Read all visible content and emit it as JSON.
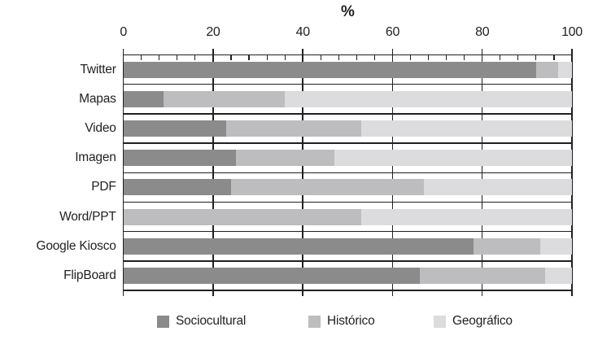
{
  "chart_data": {
    "type": "bar",
    "orientation": "horizontal",
    "stacked": true,
    "title": "",
    "xlabel": "%",
    "xlim": [
      0,
      100
    ],
    "x_ticks": [
      0,
      20,
      40,
      60,
      80,
      100
    ],
    "minor_tick_step": 4,
    "grid": "vertical-major",
    "legend_position": "bottom",
    "categories": [
      "Twitter",
      "Mapas",
      "Video",
      "Imagen",
      "PDF",
      "Word/PPT",
      "Google Kiosco",
      "FlipBoard"
    ],
    "series": [
      {
        "name": "Sociocultural",
        "color": "#8b8b8b",
        "values": [
          92,
          9,
          23,
          25,
          24,
          0,
          78,
          66
        ]
      },
      {
        "name": "Histórico",
        "color": "#bdbdbf",
        "values": [
          5,
          27,
          30,
          22,
          43,
          53,
          15,
          28
        ]
      },
      {
        "name": "Geográfico",
        "color": "#dcdcde",
        "values": [
          3,
          64,
          47,
          53,
          33,
          47,
          7,
          6
        ]
      }
    ]
  },
  "colors": {
    "axis": "#231f20",
    "text": "#231f20",
    "background": "#ffffff"
  }
}
